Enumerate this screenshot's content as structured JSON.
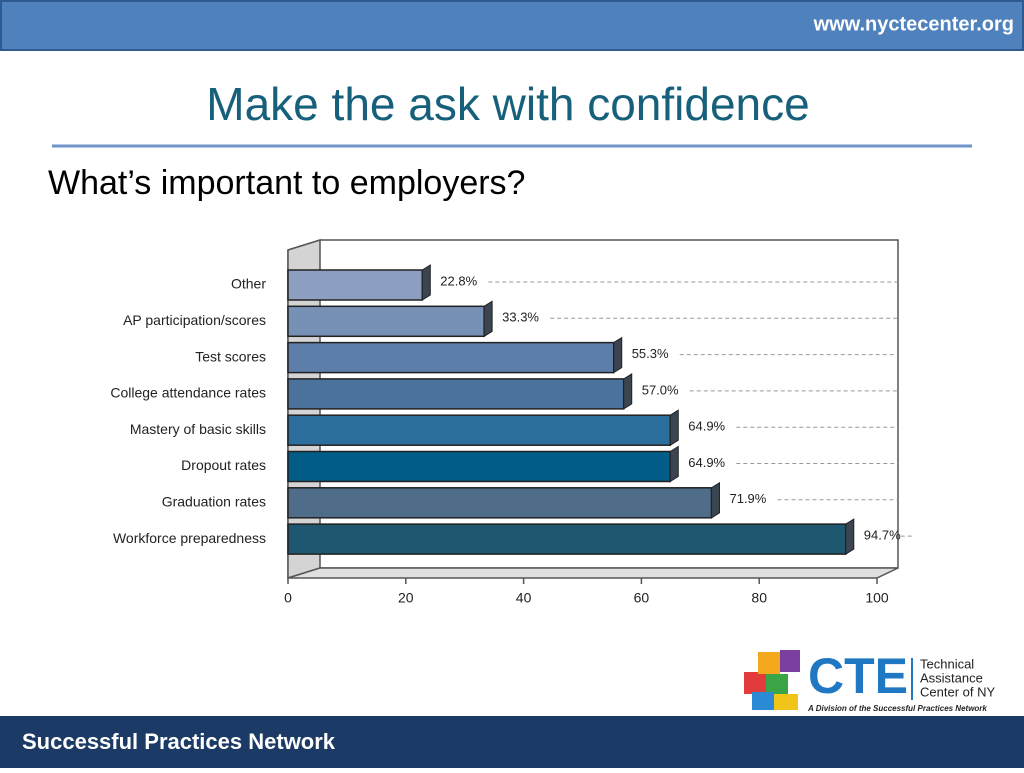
{
  "header": {
    "url": "www.nyctecenter.org"
  },
  "title": "Make the ask with confidence",
  "subtitle": "What’s important to employers?",
  "chart_data": {
    "type": "hbar",
    "categories": [
      "Other",
      "AP participation/scores",
      "Test scores",
      "College attendance rates",
      "Mastery of basic skills",
      "Dropout rates",
      "Graduation rates",
      "Workforce preparedness"
    ],
    "values": [
      22.8,
      33.3,
      55.3,
      57.0,
      64.9,
      64.9,
      71.9,
      94.7
    ],
    "value_labels": [
      "22.8%",
      "33.3%",
      "55.3%",
      "57.0%",
      "64.9%",
      "64.9%",
      "71.9%",
      "94.7%"
    ],
    "colors": [
      "#8d9fc0",
      "#7690b6",
      "#5e7eaa",
      "#4b729c",
      "#2c6f9f",
      "#015d88",
      "#4f6c88",
      "#1f5670"
    ],
    "xlim": [
      0,
      100
    ],
    "xticks": [
      0,
      20,
      40,
      60,
      80,
      100
    ]
  },
  "logo": {
    "mark": "CTE",
    "lines": [
      "Technical",
      "Assistance",
      "Center of NY"
    ],
    "tagline": "A Division of the Successful Practices Network"
  },
  "footer": {
    "text": "Successful Practices Network"
  }
}
